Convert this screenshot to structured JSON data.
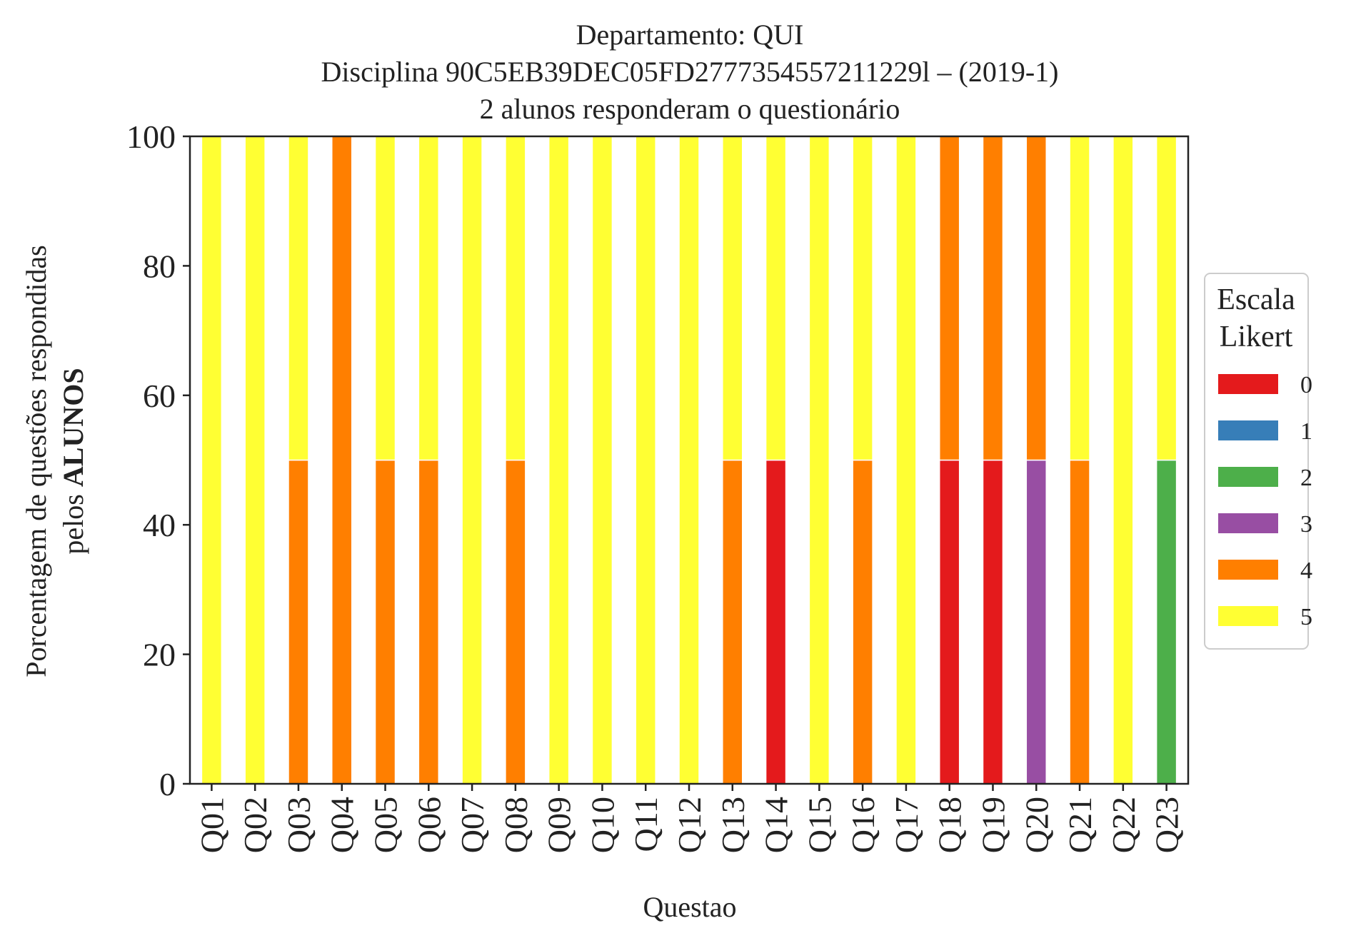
{
  "chart_data": {
    "type": "bar",
    "stacked": true,
    "title_lines": [
      "Departamento: QUI",
      "Disciplina 90C5EB39DEC05FD2777354557211229l – (2019-1)",
      "2 alunos responderam o questionário"
    ],
    "xlabel": "Questao",
    "ylabel_line1": "Porcentagem de questões respondidas",
    "ylabel_line2_prefix": "pelos ",
    "ylabel_line2_bold": "ALUNOS",
    "ylim": [
      0,
      100
    ],
    "yticks": [
      "0",
      "20",
      "40",
      "60",
      "80",
      "100"
    ],
    "grid": false,
    "legend_placement": "right-center",
    "legend_title_lines": [
      "Escala",
      "Likert"
    ],
    "categories": [
      "Q01",
      "Q02",
      "Q03",
      "Q04",
      "Q05",
      "Q06",
      "Q07",
      "Q08",
      "Q09",
      "Q10",
      "Q11",
      "Q12",
      "Q13",
      "Q14",
      "Q15",
      "Q16",
      "Q17",
      "Q18",
      "Q19",
      "Q20",
      "Q21",
      "Q22",
      "Q23"
    ],
    "series": [
      {
        "name": "0",
        "color": "#e41a1c",
        "values": [
          0,
          0,
          0,
          0,
          0,
          0,
          0,
          0,
          0,
          0,
          0,
          0,
          0,
          50,
          0,
          0,
          0,
          50,
          50,
          0,
          0,
          0,
          0
        ]
      },
      {
        "name": "1",
        "color": "#377eb8",
        "values": [
          0,
          0,
          0,
          0,
          0,
          0,
          0,
          0,
          0,
          0,
          0,
          0,
          0,
          0,
          0,
          0,
          0,
          0,
          0,
          0,
          0,
          0,
          0
        ]
      },
      {
        "name": "2",
        "color": "#4daf4a",
        "values": [
          0,
          0,
          0,
          0,
          0,
          0,
          0,
          0,
          0,
          0,
          0,
          0,
          0,
          0,
          0,
          0,
          0,
          0,
          0,
          0,
          0,
          0,
          50
        ]
      },
      {
        "name": "3",
        "color": "#984ea3",
        "values": [
          0,
          0,
          0,
          0,
          0,
          0,
          0,
          0,
          0,
          0,
          0,
          0,
          0,
          0,
          0,
          0,
          0,
          0,
          0,
          50,
          0,
          0,
          0
        ]
      },
      {
        "name": "4",
        "color": "#ff7f00",
        "values": [
          0,
          0,
          50,
          100,
          50,
          50,
          0,
          50,
          0,
          0,
          0,
          0,
          50,
          0,
          0,
          50,
          0,
          50,
          50,
          50,
          50,
          0,
          0
        ]
      },
      {
        "name": "5",
        "color": "#ffff33",
        "values": [
          100,
          100,
          50,
          0,
          50,
          50,
          100,
          50,
          100,
          100,
          100,
          100,
          50,
          50,
          100,
          50,
          100,
          0,
          0,
          0,
          50,
          100,
          50
        ]
      }
    ]
  }
}
